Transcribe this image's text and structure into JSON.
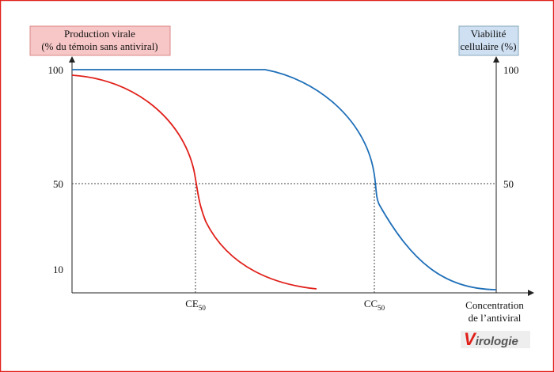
{
  "left_axis": {
    "label_lines": [
      "Production virale",
      "(% du témoin sans antiviral)"
    ],
    "ticks": [
      100,
      50,
      10
    ]
  },
  "right_axis": {
    "label_lines": [
      "Viabilité",
      "cellulaire (%)"
    ],
    "ticks": [
      100,
      50
    ]
  },
  "x_axis": {
    "label_lines": [
      "Concentration",
      "de l’antiviral"
    ]
  },
  "markers": [
    {
      "label": "CE",
      "subscript": "50"
    },
    {
      "label": "CC",
      "subscript": "50"
    }
  ],
  "logo": {
    "initial": "V",
    "rest": "irologie"
  }
}
